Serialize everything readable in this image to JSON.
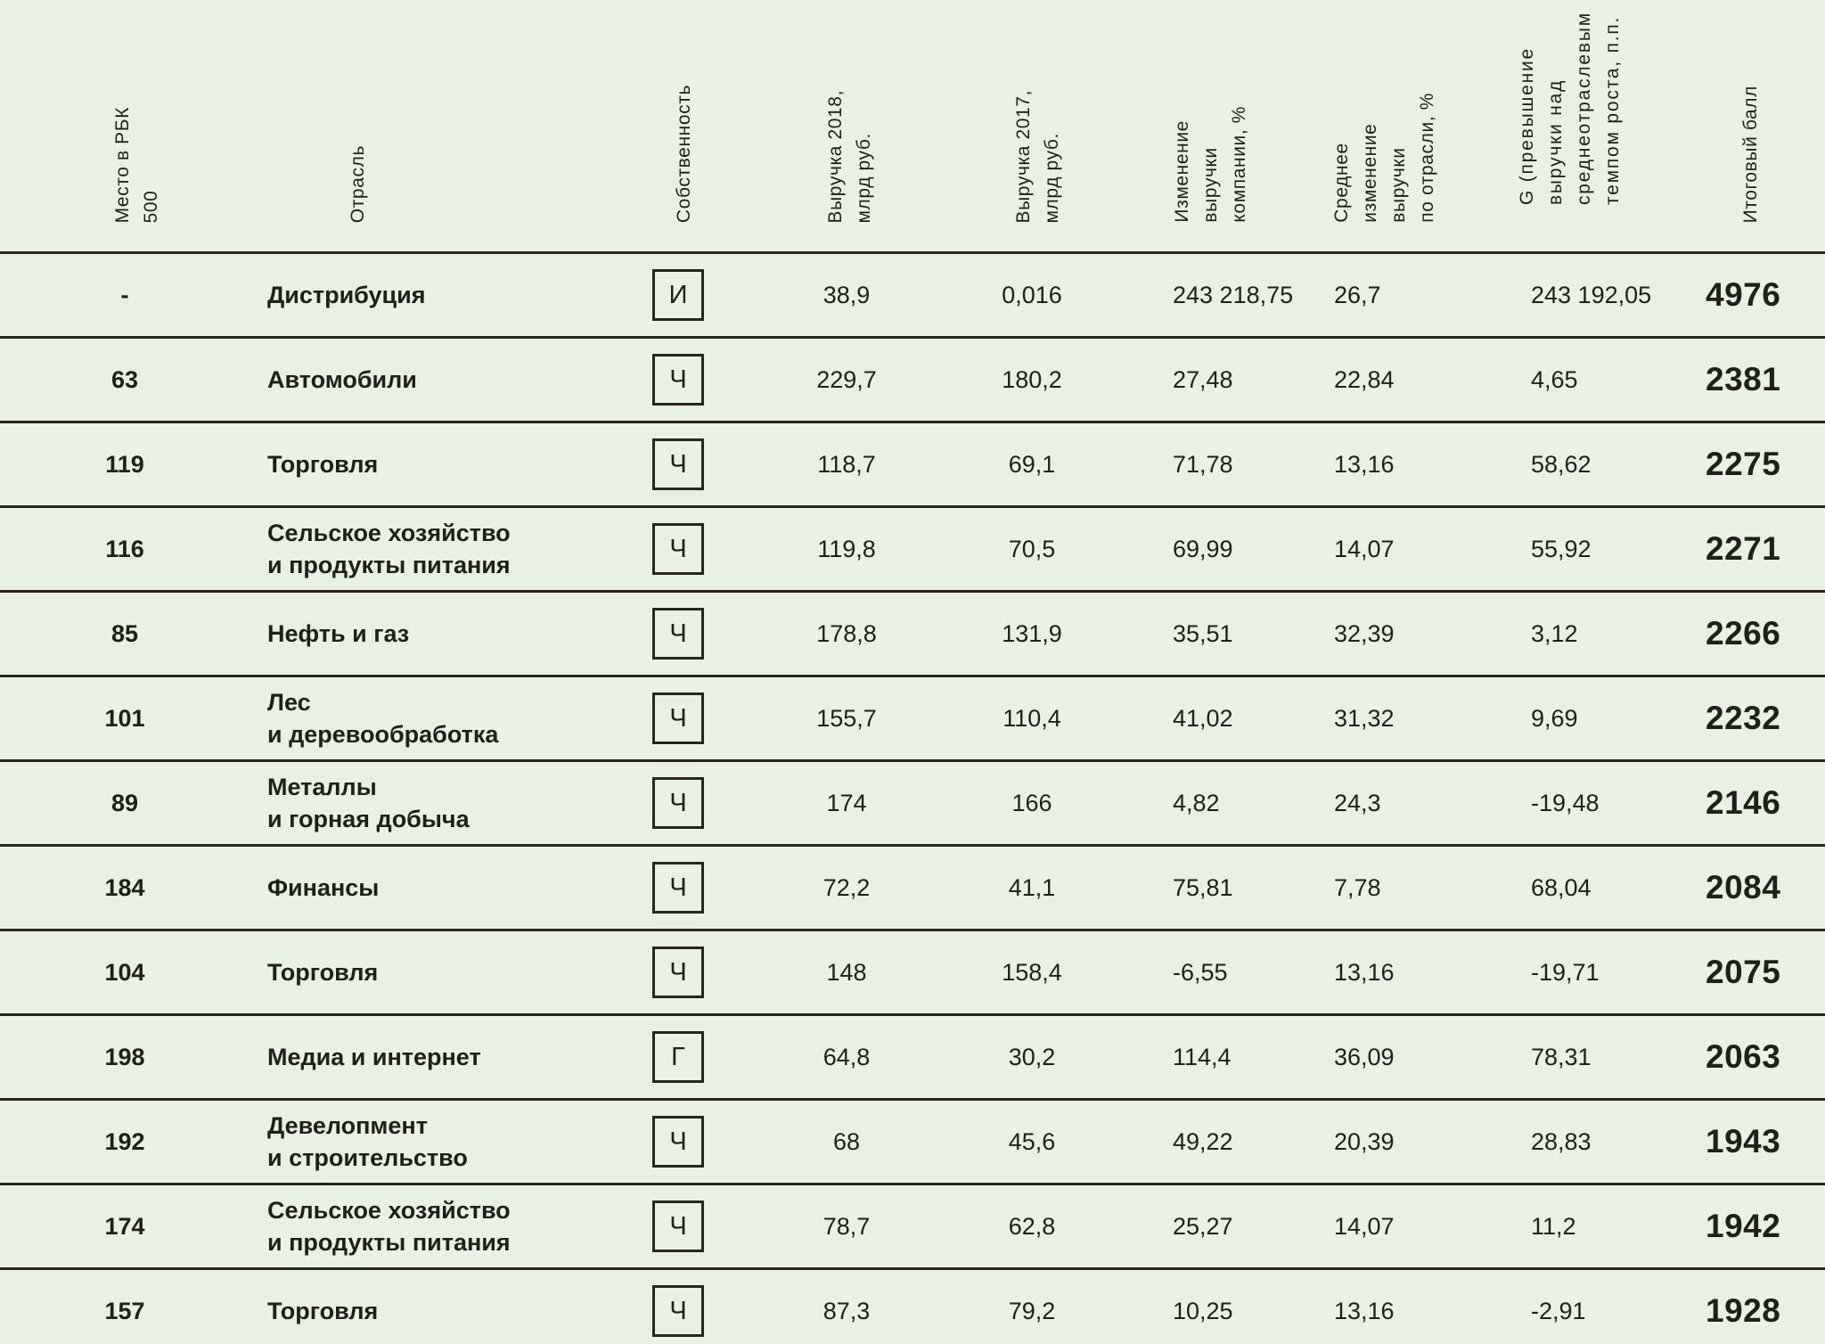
{
  "page": {
    "background": "#e9f0e4",
    "line_color": "#24261f",
    "text_color": "#1e201a"
  },
  "chart_data": {
    "type": "table",
    "columns": [
      {
        "id": "place",
        "label": "Место в РБК\n500"
      },
      {
        "id": "industry",
        "label": "Отрасль"
      },
      {
        "id": "ownership",
        "label": "Собственность"
      },
      {
        "id": "revenue_2018",
        "label": "Выручка 2018,\nмлрд руб."
      },
      {
        "id": "revenue_2017",
        "label": "Выручка 2017,\nмлрд руб."
      },
      {
        "id": "company_change_pct",
        "label": "Изменение\nвыручки\nкомпании, %"
      },
      {
        "id": "industry_avg_change_pct",
        "label": "Среднее\nизменение\nвыручки\nпо отрасли, %"
      },
      {
        "id": "g",
        "label": "G (превышение\nвыручки над\nсреднеотраслевым\nтемпом роста, п.п."
      },
      {
        "id": "score",
        "label": "Итоговый балл"
      }
    ],
    "rows": [
      {
        "place": "-",
        "industry": "Дистрибуция",
        "ownership": "И",
        "revenue_2018": "38,9",
        "revenue_2017": "0,016",
        "company_change_pct": "243 218,75",
        "industry_avg_change_pct": "26,7",
        "g": "243 192,05",
        "score": "4976"
      },
      {
        "place": "63",
        "industry": "Автомобили",
        "ownership": "Ч",
        "revenue_2018": "229,7",
        "revenue_2017": "180,2",
        "company_change_pct": "27,48",
        "industry_avg_change_pct": "22,84",
        "g": "4,65",
        "score": "2381"
      },
      {
        "place": "119",
        "industry": "Торговля",
        "ownership": "Ч",
        "revenue_2018": "118,7",
        "revenue_2017": "69,1",
        "company_change_pct": "71,78",
        "industry_avg_change_pct": "13,16",
        "g": "58,62",
        "score": "2275"
      },
      {
        "place": "116",
        "industry": "Сельское хозяйство\nи продукты питания",
        "ownership": "Ч",
        "revenue_2018": "119,8",
        "revenue_2017": "70,5",
        "company_change_pct": "69,99",
        "industry_avg_change_pct": "14,07",
        "g": "55,92",
        "score": "2271"
      },
      {
        "place": "85",
        "industry": "Нефть и газ",
        "ownership": "Ч",
        "revenue_2018": "178,8",
        "revenue_2017": "131,9",
        "company_change_pct": "35,51",
        "industry_avg_change_pct": "32,39",
        "g": "3,12",
        "score": "2266"
      },
      {
        "place": "101",
        "industry": "Лес\nи деревообработка",
        "ownership": "Ч",
        "revenue_2018": "155,7",
        "revenue_2017": "110,4",
        "company_change_pct": "41,02",
        "industry_avg_change_pct": "31,32",
        "g": "9,69",
        "score": "2232"
      },
      {
        "place": "89",
        "industry": "Металлы\nи горная добыча",
        "ownership": "Ч",
        "revenue_2018": "174",
        "revenue_2017": "166",
        "company_change_pct": "4,82",
        "industry_avg_change_pct": "24,3",
        "g": "-19,48",
        "score": "2146"
      },
      {
        "place": "184",
        "industry": "Финансы",
        "ownership": "Ч",
        "revenue_2018": "72,2",
        "revenue_2017": "41,1",
        "company_change_pct": "75,81",
        "industry_avg_change_pct": "7,78",
        "g": "68,04",
        "score": "2084"
      },
      {
        "place": "104",
        "industry": "Торговля",
        "ownership": "Ч",
        "revenue_2018": "148",
        "revenue_2017": "158,4",
        "company_change_pct": "-6,55",
        "industry_avg_change_pct": "13,16",
        "g": "-19,71",
        "score": "2075"
      },
      {
        "place": "198",
        "industry": "Медиа и интернет",
        "ownership": "Г",
        "revenue_2018": "64,8",
        "revenue_2017": "30,2",
        "company_change_pct": "114,4",
        "industry_avg_change_pct": "36,09",
        "g": "78,31",
        "score": "2063"
      },
      {
        "place": "192",
        "industry": "Девелопмент\nи строительство",
        "ownership": "Ч",
        "revenue_2018": "68",
        "revenue_2017": "45,6",
        "company_change_pct": "49,22",
        "industry_avg_change_pct": "20,39",
        "g": "28,83",
        "score": "1943"
      },
      {
        "place": "174",
        "industry": "Сельское хозяйство\nи продукты питания",
        "ownership": "Ч",
        "revenue_2018": "78,7",
        "revenue_2017": "62,8",
        "company_change_pct": "25,27",
        "industry_avg_change_pct": "14,07",
        "g": "11,2",
        "score": "1942"
      },
      {
        "place": "157",
        "industry": "Торговля",
        "ownership": "Ч",
        "revenue_2018": "87,3",
        "revenue_2017": "79,2",
        "company_change_pct": "10,25",
        "industry_avg_change_pct": "13,16",
        "g": "-2,91",
        "score": "1928"
      }
    ]
  }
}
